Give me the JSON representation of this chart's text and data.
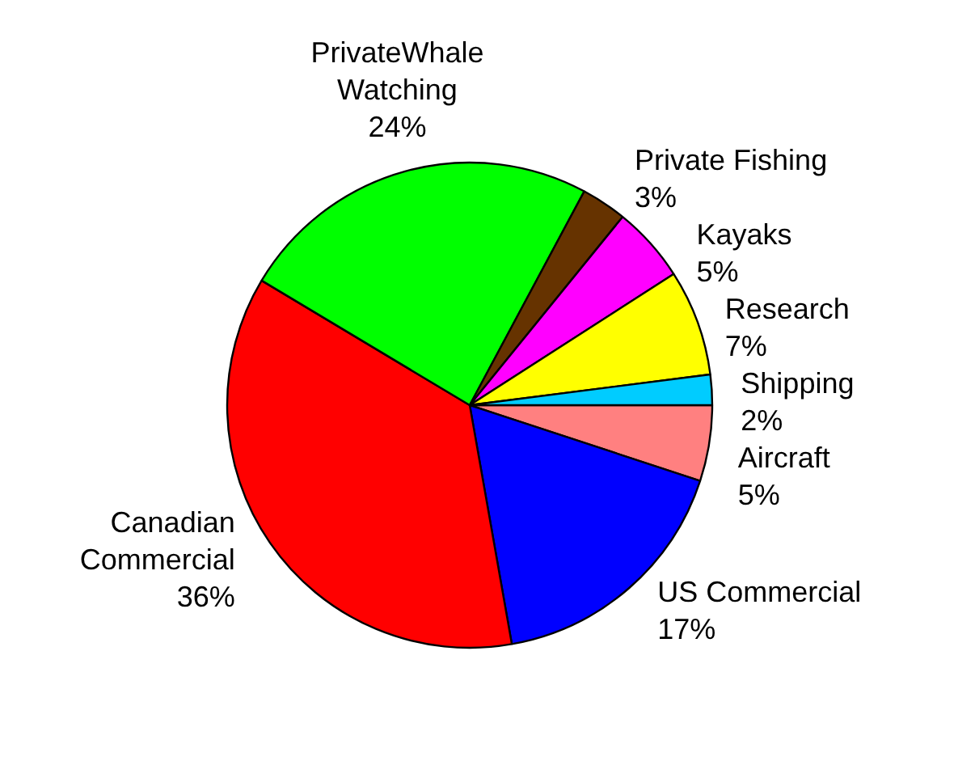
{
  "chart_data": {
    "type": "pie",
    "categories": [
      "Aircraft",
      "US Commercial",
      "Canadian\nCommercial",
      "PrivateWhale\nWatching",
      "Private Fishing",
      "Kayaks",
      "Research",
      "Shipping"
    ],
    "values": [
      5,
      17,
      36,
      24,
      3,
      5,
      7,
      2
    ],
    "value_labels": [
      "5%",
      "17%",
      "36%",
      "24%",
      "3%",
      "5%",
      "7%",
      "2%"
    ],
    "colors": [
      "#ff8080",
      "#0000ff",
      "#ff0000",
      "#00ff00",
      "#663300",
      "#ff00ff",
      "#ffff00",
      "#00ccff"
    ]
  }
}
